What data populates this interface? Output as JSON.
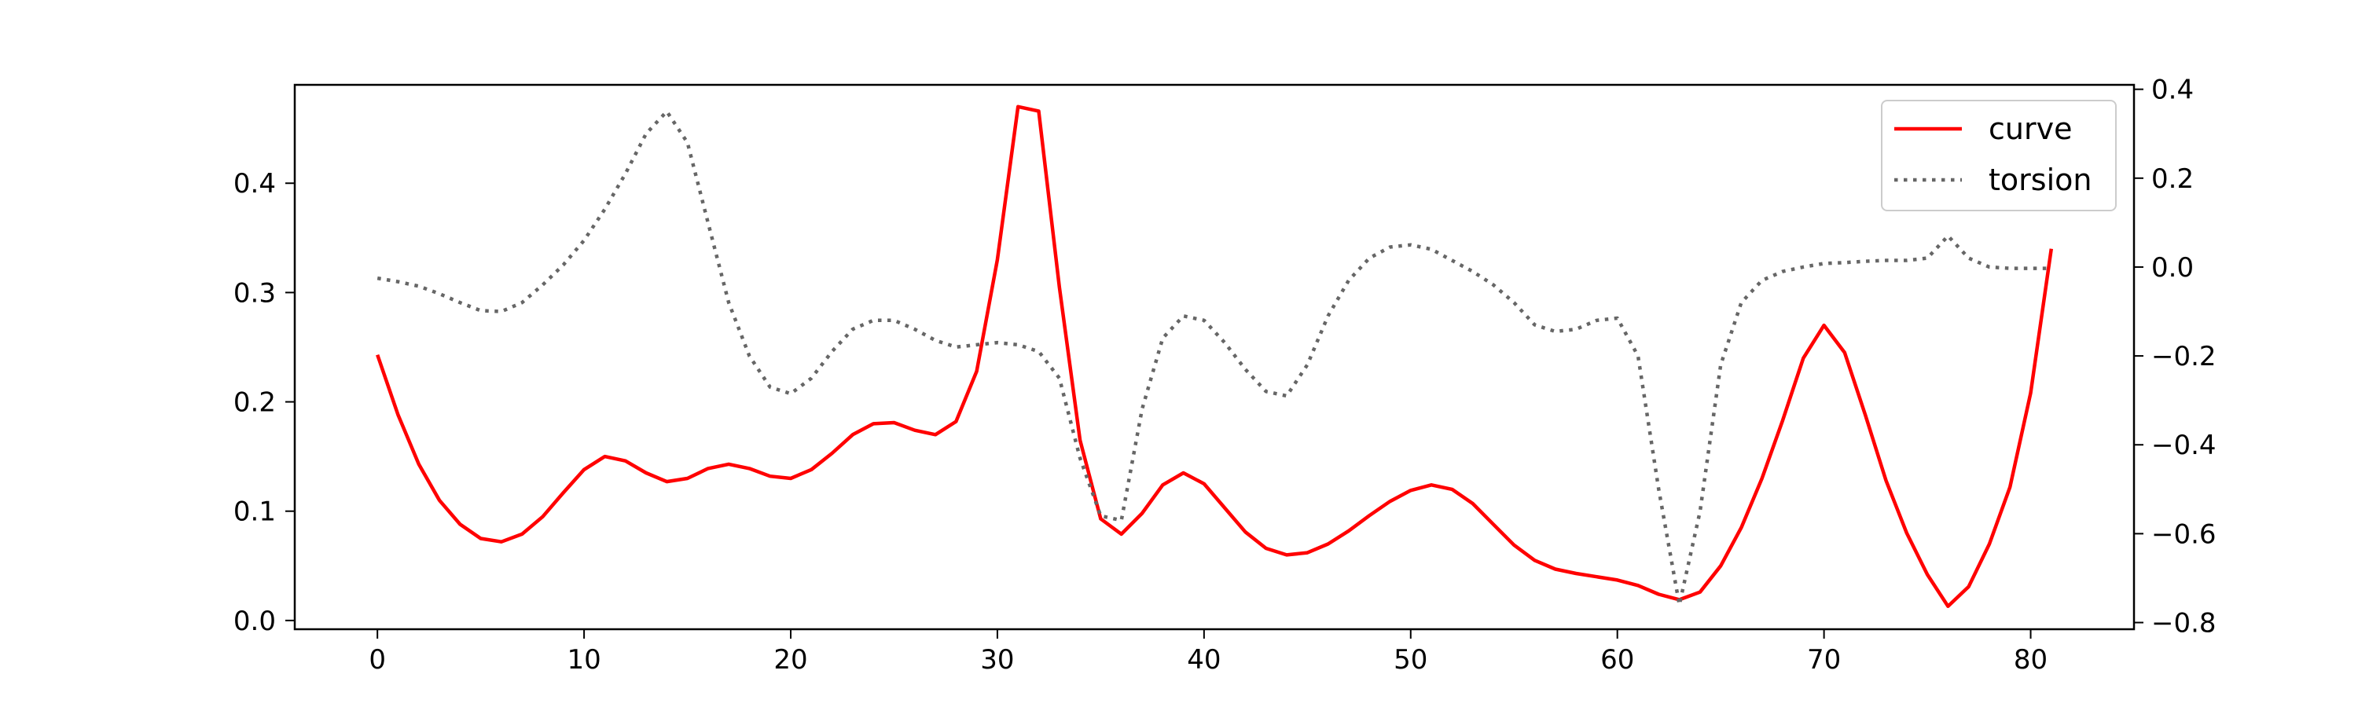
{
  "chart_data": {
    "type": "line",
    "title": "",
    "xlabel": "",
    "ylabel_left": "",
    "ylabel_right": "",
    "xlim": [
      -4,
      85
    ],
    "ylim_left": [
      -0.008,
      0.49
    ],
    "ylim_right": [
      -0.815,
      0.41
    ],
    "x_ticks": [
      0,
      10,
      20,
      30,
      40,
      50,
      60,
      70,
      80
    ],
    "y_ticks_left": [
      0.0,
      0.1,
      0.2,
      0.3,
      0.4
    ],
    "y_ticks_left_labels": [
      "0.0",
      "0.1",
      "0.2",
      "0.3",
      "0.4"
    ],
    "y_ticks_right": [
      -0.8,
      -0.6,
      -0.4,
      -0.2,
      0.0,
      0.2,
      0.4
    ],
    "y_ticks_right_labels": [
      "−0.8",
      "−0.6",
      "−0.4",
      "−0.2",
      "0.0",
      "0.2",
      "0.4"
    ],
    "grid": false,
    "legend_position": "top-right",
    "series": [
      {
        "name": "curve",
        "axis": "left",
        "color": "#ff0000",
        "style": "solid",
        "x": [
          0,
          1,
          2,
          3,
          4,
          5,
          6,
          7,
          8,
          9,
          10,
          11,
          12,
          13,
          14,
          15,
          16,
          17,
          18,
          19,
          20,
          21,
          22,
          23,
          24,
          25,
          26,
          27,
          28,
          29,
          30,
          31,
          32,
          33,
          34,
          35,
          36,
          37,
          38,
          39,
          40,
          41,
          42,
          43,
          44,
          45,
          46,
          47,
          48,
          49,
          50,
          51,
          52,
          53,
          54,
          55,
          56,
          57,
          58,
          59,
          60,
          61,
          62,
          63,
          64,
          65,
          66,
          67,
          68,
          69,
          70,
          71,
          72,
          73,
          74,
          75,
          76,
          77,
          78,
          79,
          80,
          81
        ],
        "values": [
          0.243,
          0.188,
          0.143,
          0.11,
          0.088,
          0.075,
          0.072,
          0.079,
          0.095,
          0.117,
          0.138,
          0.15,
          0.146,
          0.135,
          0.127,
          0.13,
          0.139,
          0.143,
          0.139,
          0.132,
          0.13,
          0.138,
          0.153,
          0.17,
          0.18,
          0.181,
          0.174,
          0.17,
          0.182,
          0.228,
          0.33,
          0.47,
          0.466,
          0.305,
          0.165,
          0.093,
          0.079,
          0.098,
          0.124,
          0.135,
          0.125,
          0.103,
          0.081,
          0.066,
          0.06,
          0.062,
          0.07,
          0.082,
          0.096,
          0.109,
          0.119,
          0.124,
          0.12,
          0.107,
          0.088,
          0.069,
          0.055,
          0.047,
          0.043,
          0.04,
          0.037,
          0.032,
          0.024,
          0.019,
          0.026,
          0.05,
          0.085,
          0.13,
          0.183,
          0.24,
          0.27,
          0.245,
          0.188,
          0.128,
          0.08,
          0.042,
          0.013,
          0.031,
          0.07,
          0.122,
          0.208,
          0.34
        ]
      },
      {
        "name": "torsion",
        "axis": "right",
        "color": "#666666",
        "style": "dotted",
        "x": [
          0,
          1,
          2,
          3,
          4,
          5,
          6,
          7,
          8,
          9,
          10,
          11,
          12,
          13,
          14,
          15,
          16,
          17,
          18,
          19,
          20,
          21,
          22,
          23,
          24,
          25,
          26,
          27,
          28,
          29,
          30,
          31,
          32,
          33,
          34,
          35,
          36,
          37,
          38,
          39,
          40,
          41,
          42,
          43,
          44,
          45,
          46,
          47,
          48,
          49,
          50,
          51,
          52,
          53,
          54,
          55,
          56,
          57,
          58,
          59,
          60,
          61,
          62,
          63,
          64,
          65,
          66,
          67,
          68,
          69,
          70,
          71,
          72,
          73,
          74,
          75,
          76,
          77,
          78,
          79,
          80,
          81
        ],
        "values": [
          -0.025,
          -0.033,
          -0.043,
          -0.06,
          -0.08,
          -0.098,
          -0.1,
          -0.08,
          -0.04,
          0.005,
          0.06,
          0.13,
          0.21,
          0.3,
          0.35,
          0.28,
          0.1,
          -0.08,
          -0.2,
          -0.27,
          -0.285,
          -0.25,
          -0.19,
          -0.14,
          -0.12,
          -0.12,
          -0.14,
          -0.165,
          -0.18,
          -0.175,
          -0.17,
          -0.175,
          -0.19,
          -0.25,
          -0.43,
          -0.56,
          -0.57,
          -0.32,
          -0.16,
          -0.11,
          -0.12,
          -0.17,
          -0.23,
          -0.28,
          -0.29,
          -0.22,
          -0.11,
          -0.03,
          0.02,
          0.045,
          0.05,
          0.04,
          0.015,
          -0.01,
          -0.04,
          -0.08,
          -0.13,
          -0.145,
          -0.14,
          -0.12,
          -0.115,
          -0.2,
          -0.5,
          -0.76,
          -0.55,
          -0.22,
          -0.08,
          -0.03,
          -0.01,
          0.0,
          0.008,
          0.01,
          0.013,
          0.015,
          0.015,
          0.02,
          0.07,
          0.02,
          0.0,
          -0.003,
          -0.003,
          -0.003
        ]
      }
    ]
  }
}
